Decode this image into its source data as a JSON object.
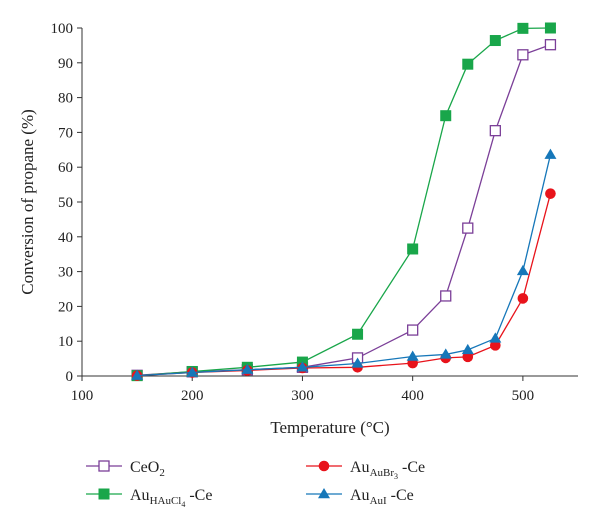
{
  "chart_data": {
    "type": "line",
    "xlabel": "Temperature (°C)",
    "ylabel": "Conversion of propane (%)",
    "xlim": [
      100,
      550
    ],
    "ylim": [
      0,
      100
    ],
    "xticks": [
      100,
      200,
      300,
      400,
      500
    ],
    "yticks": [
      0,
      10,
      20,
      30,
      40,
      50,
      60,
      70,
      80,
      90,
      100
    ],
    "grid": false,
    "legend_position": "bottom",
    "series": [
      {
        "name": "CeO2",
        "label_main": "CeO",
        "label_sub": "2",
        "label_suffix": "",
        "color": "#7b3f98",
        "marker": "open-square",
        "points": [
          [
            150,
            0.2
          ],
          [
            200,
            1.2
          ],
          [
            250,
            1.8
          ],
          [
            300,
            2.5
          ],
          [
            350,
            5.2
          ],
          [
            400,
            13.2
          ],
          [
            430,
            23.0
          ],
          [
            450,
            42.5
          ],
          [
            475,
            70.5
          ],
          [
            500,
            92.3
          ],
          [
            525,
            95.2
          ]
        ]
      },
      {
        "name": "AuHAuCl4-Ce",
        "label_main": "Au",
        "label_sub": "HAuCl",
        "label_sub2": "4",
        "label_suffix": "-Ce",
        "color": "#19a64a",
        "marker": "filled-square",
        "points": [
          [
            150,
            0.1
          ],
          [
            200,
            1.3
          ],
          [
            250,
            2.5
          ],
          [
            300,
            4.0
          ],
          [
            350,
            12.0
          ],
          [
            400,
            36.5
          ],
          [
            430,
            74.8
          ],
          [
            450,
            89.6
          ],
          [
            475,
            96.4
          ],
          [
            500,
            99.9
          ],
          [
            525,
            100.0
          ]
        ]
      },
      {
        "name": "AuAuBr3-Ce",
        "label_main": "Au",
        "label_sub": "AuBr",
        "label_sub2": "3",
        "label_suffix": "-Ce",
        "color": "#e8131b",
        "marker": "filled-circle",
        "points": [
          [
            150,
            0.1
          ],
          [
            200,
            1.0
          ],
          [
            250,
            1.6
          ],
          [
            300,
            2.3
          ],
          [
            350,
            2.5
          ],
          [
            400,
            3.7
          ],
          [
            430,
            5.2
          ],
          [
            450,
            5.5
          ],
          [
            475,
            8.8
          ],
          [
            500,
            22.3
          ],
          [
            525,
            52.4
          ]
        ]
      },
      {
        "name": "AuAuI-Ce",
        "label_main": "Au",
        "label_sub": "AuI",
        "label_suffix": "-Ce",
        "color": "#1677b9",
        "marker": "filled-triangle",
        "points": [
          [
            150,
            0.1
          ],
          [
            200,
            1.0
          ],
          [
            250,
            1.8
          ],
          [
            300,
            2.5
          ],
          [
            350,
            3.6
          ],
          [
            400,
            5.6
          ],
          [
            430,
            6.2
          ],
          [
            450,
            7.5
          ],
          [
            475,
            10.8
          ],
          [
            500,
            30.2
          ],
          [
            525,
            63.6
          ]
        ]
      }
    ]
  }
}
